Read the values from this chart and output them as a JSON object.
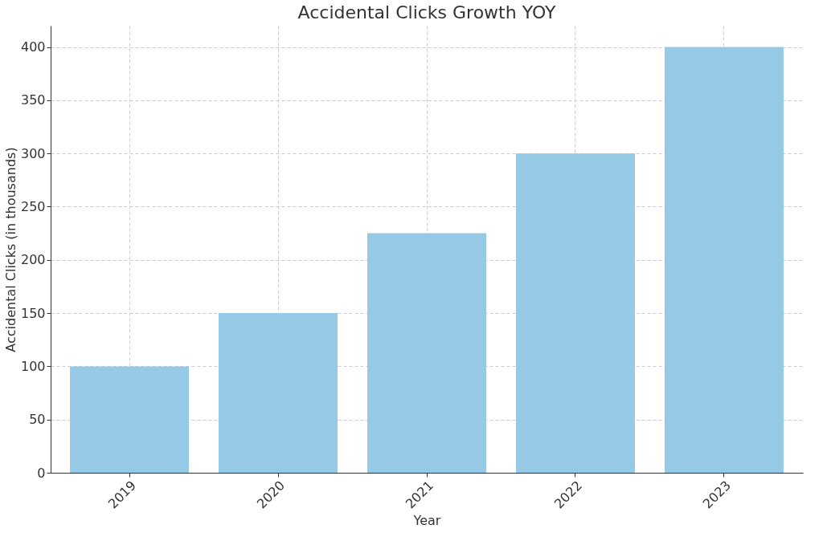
{
  "chart_data": {
    "type": "bar",
    "title": "Accidental Clicks Growth YOY",
    "xlabel": "Year",
    "ylabel": "Accidental Clicks (in thousands)",
    "categories": [
      "2019",
      "2020",
      "2021",
      "2022",
      "2023"
    ],
    "values": [
      100,
      150,
      225,
      300,
      400
    ],
    "color": "#95c9e6",
    "ylim": [
      0,
      420
    ],
    "yticks": [
      0,
      50,
      100,
      150,
      200,
      250,
      300,
      350,
      400
    ],
    "grid": true
  }
}
